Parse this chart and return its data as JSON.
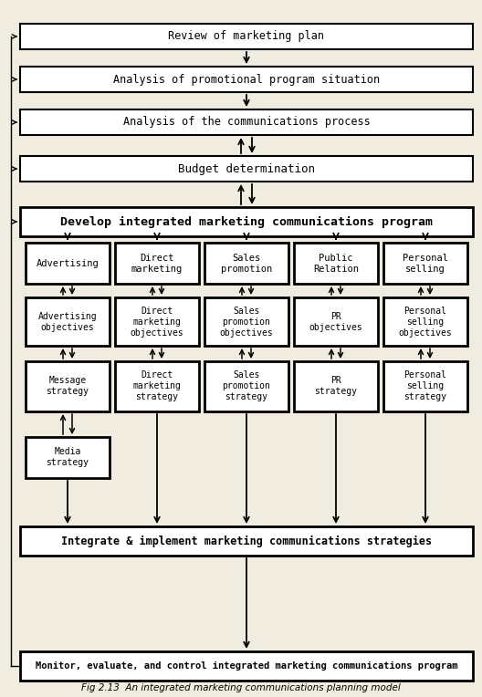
{
  "title": "Fig 2.13  An integrated marketing communications planning model",
  "bg_color": "#f0ece0",
  "box_color": "#ffffff",
  "box_edge_color": "#000000",
  "text_color": "#000000",
  "top_boxes": [
    "Review of marketing plan",
    "Analysis of promotional program situation",
    "Analysis of the communications process",
    "Budget determination",
    "Develop integrated marketing communications program"
  ],
  "top_bold": [
    false,
    false,
    false,
    false,
    true
  ],
  "col_headers": [
    "Advertising",
    "Direct\nmarketing",
    "Sales\npromotion",
    "Public\nRelation",
    "Personal\nselling"
  ],
  "col_row2": [
    "Advertising\nobjectives",
    "Direct\nmarketing\nobjectives",
    "Sales\npromotion\nobjectives",
    "PR\nobjectives",
    "Personal\nselling\nobjectives"
  ],
  "col_row3": [
    "Message\nstrategy",
    "Direct\nmarketing\nstrategy",
    "Sales\npromotion\nstrategy",
    "PR\nstrategy",
    "Personal\nselling\nstrategy"
  ],
  "col_row4": [
    "Media\nstrategy"
  ],
  "bottom_boxes": [
    "Integrate & implement marketing communications strategies",
    "Monitor, evaluate, and control integrated marketing communications program"
  ],
  "arrow_color": "#000000"
}
